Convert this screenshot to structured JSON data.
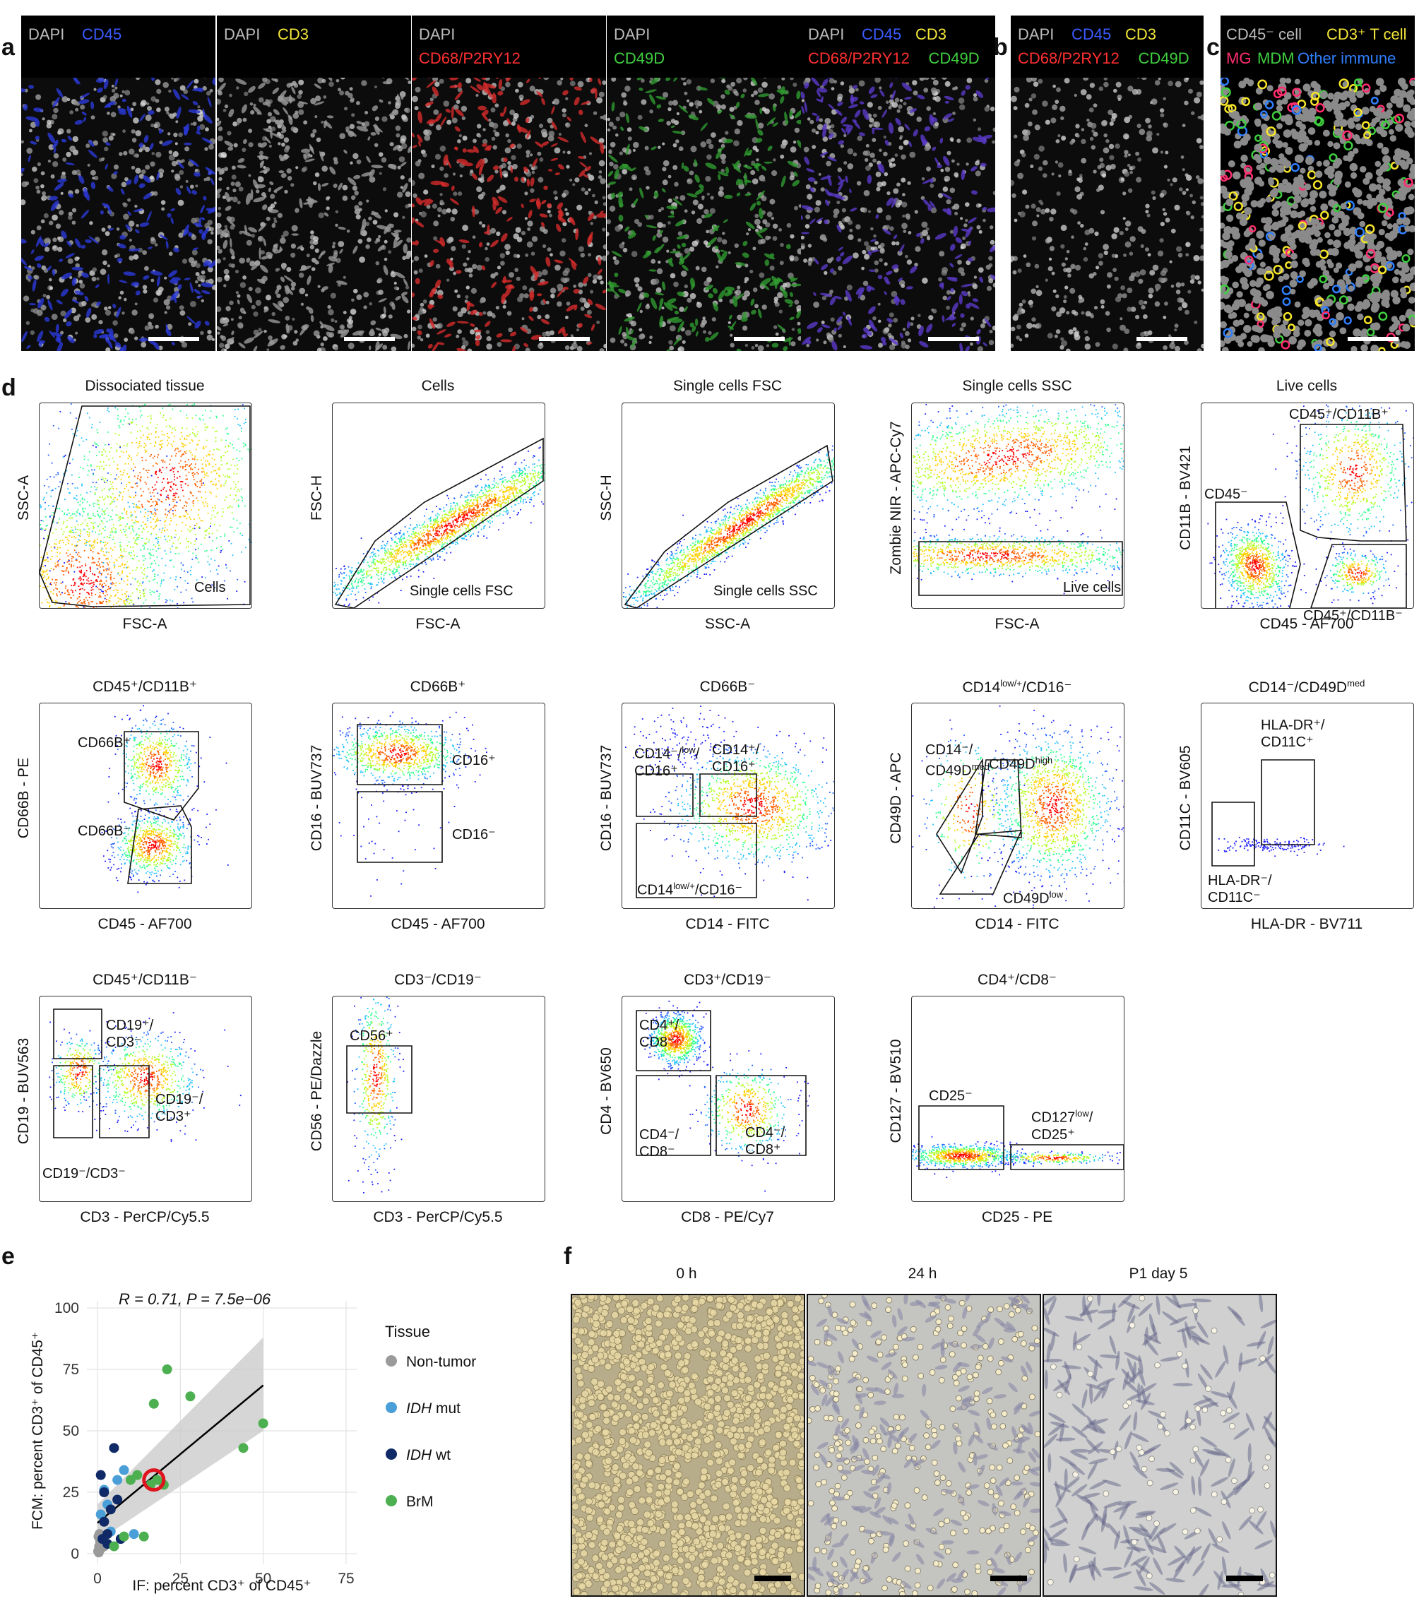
{
  "panel_labels": {
    "a": "a",
    "b": "b",
    "c": "c",
    "d": "d",
    "e": "e",
    "f": "f"
  },
  "panel_a": [
    {
      "lines": [
        [
          {
            "t": "DAPI",
            "c": "#bbbbbb"
          },
          {
            "t": "CD45",
            "c": "#3a5bff"
          }
        ]
      ],
      "tint": "#2a3ad8"
    },
    {
      "lines": [
        [
          {
            "t": "DAPI",
            "c": "#bbbbbb"
          },
          {
            "t": "CD3",
            "c": "#f2e53a"
          }
        ]
      ],
      "tint": "#9a9a9a"
    },
    {
      "lines": [
        [
          {
            "t": "DAPI",
            "c": "#bbbbbb"
          }
        ],
        [
          {
            "t": "CD68/P2RY12",
            "c": "#ff3030"
          }
        ]
      ],
      "tint": "#d42a2a"
    },
    {
      "lines": [
        [
          {
            "t": "DAPI",
            "c": "#bbbbbb"
          }
        ],
        [
          {
            "t": "CD49D",
            "c": "#3fcf3f"
          }
        ]
      ],
      "tint": "#2f9a2f"
    },
    {
      "lines": [
        [
          {
            "t": "DAPI",
            "c": "#bbbbbb"
          },
          {
            "t": "CD45",
            "c": "#3a5bff"
          },
          {
            "t": "CD3",
            "c": "#f2e53a"
          }
        ],
        [
          {
            "t": "CD68/P2RY12",
            "c": "#ff3030"
          },
          {
            "t": "CD49D",
            "c": "#3fcf3f"
          }
        ]
      ],
      "tint": "#5a3ac8"
    }
  ],
  "panel_b": {
    "lines": [
      [
        {
          "t": "DAPI",
          "c": "#bbbbbb"
        },
        {
          "t": "CD45",
          "c": "#3a5bff"
        },
        {
          "t": "CD3",
          "c": "#f2e53a"
        }
      ],
      [
        {
          "t": "CD68/P2RY12",
          "c": "#ff3030"
        },
        {
          "t": "CD49D",
          "c": "#3fcf3f"
        }
      ]
    ]
  },
  "panel_c": {
    "line1_left": "CD45⁻ cell",
    "line1_right": "CD3⁺ T cell",
    "line2": [
      {
        "t": "MG",
        "c": "#ff2e6e"
      },
      {
        "t": "MDM",
        "c": "#3fcf3f"
      },
      {
        "t": "Other immune",
        "c": "#2f7fff"
      }
    ]
  },
  "flow_plots": [
    {
      "title": "Dissociated tissue",
      "xlabel": "FSC-A",
      "ylabel": "SSC-A",
      "gates": [
        {
          "label": "Cells"
        }
      ]
    },
    {
      "title": "Cells",
      "xlabel": "FSC-A",
      "ylabel": "FSC-H",
      "gates": [
        {
          "label": "Single cells FSC"
        }
      ]
    },
    {
      "title": "Single cells FSC",
      "xlabel": "SSC-A",
      "ylabel": "SSC-H",
      "gates": [
        {
          "label": "Single cells SSC"
        }
      ]
    },
    {
      "title": "Single cells SSC",
      "xlabel": "FSC-A",
      "ylabel": "Zombie NIR - APC-Cy7",
      "gates": [
        {
          "label": "Live cells"
        }
      ]
    },
    {
      "title": "Live cells",
      "xlabel": "CD45 - AF700",
      "ylabel": "CD11B - BV421",
      "gates": [
        {
          "label": "CD45⁻"
        },
        {
          "label": "CD45⁺/CD11B⁺"
        },
        {
          "label": "CD45⁺/CD11B⁻"
        }
      ]
    },
    {
      "title": "CD45⁺/CD11B⁺",
      "xlabel": "CD45 - AF700",
      "ylabel": "CD66B - PE",
      "gates": [
        {
          "label": "CD66B⁺"
        },
        {
          "label": "CD66B⁻"
        }
      ]
    },
    {
      "title": "CD66B⁺",
      "xlabel": "CD45 - AF700",
      "ylabel": "CD16 - BUV737",
      "gates": [
        {
          "label": "CD16⁺"
        },
        {
          "label": "CD16⁻"
        }
      ]
    },
    {
      "title": "CD66B⁻",
      "xlabel": "CD14 - FITC",
      "ylabel": "CD16 - BUV737",
      "gates": [
        {
          "label": "CD14⁻/low/ CD16⁺"
        },
        {
          "label": "CD14⁺/ CD16⁺"
        },
        {
          "label": "CD14low/+/CD16⁻"
        }
      ]
    },
    {
      "title": "CD14low/+/CD16⁻",
      "xlabel": "CD14 - FITC",
      "ylabel": "CD49D - APC",
      "gates": [
        {
          "label": "CD14⁻/ CD49Dmed"
        },
        {
          "label": "CD49Dhigh"
        },
        {
          "label": "CD49Dlow"
        }
      ]
    },
    {
      "title": "CD14⁻/CD49Dmed",
      "xlabel": "HLA-DR - BV711",
      "ylabel": "CD11C - BV605",
      "gates": [
        {
          "label": "HLA-DR⁺/ CD11C⁺"
        },
        {
          "label": "HLA-DR⁻/ CD11C⁻"
        }
      ]
    },
    {
      "title": "CD45⁺/CD11B⁻",
      "xlabel": "CD3 - PerCP/Cy5.5",
      "ylabel": "CD19 - BUV563",
      "gates": [
        {
          "label": "CD19⁺/ CD3⁻"
        },
        {
          "label": "CD19⁻/ CD3⁺"
        },
        {
          "label": "CD19⁻/CD3⁻"
        }
      ]
    },
    {
      "title": "CD3⁻/CD19⁻",
      "xlabel": "CD3 - PerCP/Cy5.5",
      "ylabel": "CD56 - PE/Dazzle",
      "gates": [
        {
          "label": "CD56⁺"
        }
      ]
    },
    {
      "title": "CD3⁺/CD19⁻",
      "xlabel": "CD8 - PE/Cy7",
      "ylabel": "CD4 - BV650",
      "gates": [
        {
          "label": "CD4⁺/ CD8⁻"
        },
        {
          "label": "CD4⁻/ CD8⁻"
        },
        {
          "label": "CD4⁻/ CD8⁺"
        }
      ]
    },
    {
      "title": "CD4⁺/CD8⁻",
      "xlabel": "CD25 - PE",
      "ylabel": "CD127 - BV510",
      "gates": [
        {
          "label": "CD25⁻"
        },
        {
          "label": "CD127low/ CD25⁺"
        }
      ]
    }
  ],
  "chart_data": {
    "type": "scatter",
    "stat_text": "R = 0.71, P = 7.5e−06",
    "xlabel": "IF: percent CD3⁺ of CD45⁺",
    "ylabel": "FCM: percent CD3⁺ of CD45⁺",
    "xlim": [
      0,
      75
    ],
    "ylim": [
      0,
      100
    ],
    "xticks": [
      0,
      25,
      50,
      75
    ],
    "yticks": [
      0,
      25,
      50,
      75,
      100
    ],
    "legend_title": "Tissue",
    "series": [
      {
        "name": "Non-tumor",
        "color": "#9a9a9a",
        "points": [
          [
            0.2,
            1
          ],
          [
            0.5,
            3
          ],
          [
            0.8,
            5
          ],
          [
            0.3,
            7
          ],
          [
            1,
            2
          ],
          [
            0.6,
            8
          ],
          [
            1.5,
            4
          ],
          [
            0.4,
            0.5
          ],
          [
            1.2,
            6
          ],
          [
            2,
            3
          ]
        ]
      },
      {
        "name": "IDH mut",
        "color": "#4a9fd8",
        "points": [
          [
            2,
            26
          ],
          [
            4,
            9
          ],
          [
            6,
            30
          ],
          [
            8,
            34
          ],
          [
            3,
            20
          ],
          [
            11,
            8
          ],
          [
            1,
            16
          ]
        ]
      },
      {
        "name": "IDH wt",
        "color": "#0f2a66",
        "points": [
          [
            1,
            32
          ],
          [
            2,
            13
          ],
          [
            3,
            8
          ],
          [
            4,
            18
          ],
          [
            5,
            43
          ],
          [
            6,
            22
          ],
          [
            7,
            6
          ],
          [
            3,
            4
          ],
          [
            2,
            25
          ],
          [
            1.5,
            6
          ]
        ]
      },
      {
        "name": "BrM",
        "color": "#4caf50",
        "points": [
          [
            17,
            61
          ],
          [
            20,
            28
          ],
          [
            21,
            75
          ],
          [
            28,
            64
          ],
          [
            44,
            43
          ],
          [
            50,
            53
          ],
          [
            8,
            7
          ],
          [
            10,
            30
          ],
          [
            14,
            7
          ],
          [
            18,
            30
          ],
          [
            5,
            3
          ],
          [
            12,
            32
          ],
          [
            16,
            28
          ]
        ]
      }
    ],
    "fit": {
      "x": [
        0,
        50
      ],
      "y": [
        12.5,
        68.5
      ]
    },
    "highlight": [
      17,
      30
    ]
  },
  "panel_f": {
    "labels": [
      "0 h",
      "24 h",
      "P1 day 5"
    ]
  }
}
